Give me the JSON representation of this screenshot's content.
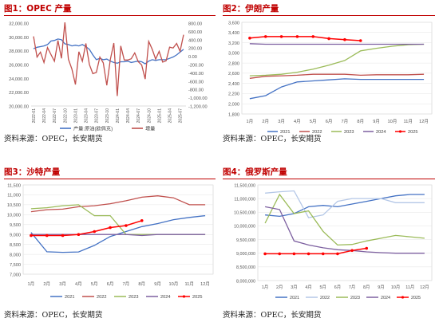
{
  "source_text": "资料来源：OPEC，长安期货",
  "chart_data": [
    {
      "id": "fig1",
      "type": "line",
      "title": "图1：OPEC 产量",
      "x": [
        "2022-01",
        "2022-02",
        "2022-03",
        "2022-04",
        "2022-05",
        "2022-06",
        "2022-07",
        "2022-08",
        "2022-09",
        "2022-10",
        "2022-11",
        "2022-12",
        "2023-01",
        "2023-02",
        "2023-03",
        "2023-04",
        "2023-05",
        "2023-06",
        "2023-07",
        "2023-08",
        "2023-09",
        "2023-10",
        "2023-11",
        "2023-12",
        "2024-01",
        "2024-02",
        "2024-03",
        "2024-04",
        "2024-05",
        "2024-06",
        "2024-07",
        "2024-08",
        "2024-09",
        "2024-10",
        "2024-11",
        "2024-12",
        "2025-01",
        "2025-02",
        "2025-03",
        "2025-04",
        "2025-05",
        "2025-06",
        "2025-07",
        "2025-08"
      ],
      "x_tick_labels": [
        "2022-01",
        "2022-04",
        "2022-07",
        "2022-10",
        "2023-01",
        "2023-04",
        "2023-07",
        "2023-10",
        "2024-01",
        "2024-04",
        "2024-07",
        "2024-10",
        "2025-01",
        "2025-04",
        "2025-07"
      ],
      "left_ticks": [
        "32,000.00",
        "30,000.00",
        "28,000.00",
        "26,000.00",
        "24,000.00",
        "22,000.00",
        "20,000.00"
      ],
      "right_ticks": [
        "800.00",
        "600.00",
        "400.00",
        "200.00",
        "0.00",
        "-200.00",
        "-400.00",
        "-600.00",
        "-800.00",
        "-1,000.00",
        "-1,200.00"
      ],
      "ylim_left": [
        20000,
        32000
      ],
      "ylim_right": [
        -1200,
        800
      ],
      "series": [
        {
          "name": "产量:原油(欧佩克)",
          "axis": "left",
          "color": "#4472c4",
          "values": [
            28300,
            28500,
            28600,
            28700,
            28900,
            29400,
            29500,
            29700,
            29600,
            29000,
            28900,
            28700,
            28800,
            28700,
            28900,
            28600,
            28200,
            27400,
            26700,
            26900,
            26700,
            26800,
            26500,
            26300,
            26200,
            26400,
            26400,
            26500,
            26300,
            26400,
            26500,
            26400,
            26100,
            26500,
            26700,
            26600,
            26700,
            26700,
            26700,
            26900,
            27100,
            27400,
            27800,
            28200
          ]
        },
        {
          "name": "增量",
          "axis": "right",
          "color": "#c0504d",
          "values": [
            480,
            -20,
            100,
            -150,
            210,
            40,
            -120,
            380,
            -50,
            820,
            -70,
            -310,
            -680,
            110,
            -120,
            310,
            -200,
            -420,
            -390,
            -20,
            -160,
            -700,
            -80,
            320,
            -960,
            250,
            -90,
            -90,
            -60,
            80,
            -130,
            -210,
            -550,
            360,
            170,
            -70,
            120,
            -140,
            -110,
            220,
            200,
            310,
            120,
            520
          ]
        }
      ]
    },
    {
      "id": "fig2",
      "type": "line",
      "title": "图2：伊朗产量",
      "categories": [
        "1月",
        "2月",
        "3月",
        "4月",
        "5月",
        "6月",
        "7月",
        "8月",
        "9月",
        "10月",
        "11月",
        "12月"
      ],
      "y_ticks": [
        "3,600",
        "3,400",
        "3,200",
        "3,000",
        "2,800",
        "2,600",
        "2,400",
        "2,200",
        "2,000",
        "1,800"
      ],
      "ylim": [
        1800,
        3600
      ],
      "series": [
        {
          "name": "2021",
          "color": "#4472c4",
          "values": [
            2100,
            2160,
            2330,
            2430,
            2450,
            2470,
            2490,
            2480,
            2480,
            2480,
            2480,
            2480
          ]
        },
        {
          "name": "2022",
          "color": "#c0504d",
          "values": [
            2500,
            2540,
            2550,
            2560,
            2580,
            2580,
            2580,
            2560,
            2570,
            2570,
            2570,
            2580
          ]
        },
        {
          "name": "2023",
          "color": "#9bbb59",
          "values": [
            2550,
            2560,
            2580,
            2620,
            2680,
            2760,
            2850,
            3040,
            3090,
            3130,
            3160,
            3170
          ]
        },
        {
          "name": "2024",
          "color": "#7d60a0",
          "values": [
            3180,
            3170,
            3170,
            3170,
            3170,
            3170,
            3170,
            3170,
            3170,
            3170,
            3170,
            3170
          ]
        },
        {
          "name": "2025",
          "color": "#ff0000",
          "values": [
            3290,
            3320,
            3320,
            3320,
            3320,
            3280,
            3260,
            3240,
            null,
            null,
            null,
            null
          ]
        }
      ]
    },
    {
      "id": "fig3",
      "type": "line",
      "title": "图3：沙特产量",
      "categories": [
        "1月",
        "2月",
        "3月",
        "4月",
        "5月",
        "6月",
        "7月",
        "8月",
        "9月",
        "10月",
        "11月",
        "12月"
      ],
      "y_ticks": [
        "11,500",
        "11,000",
        "10,500",
        "10,000",
        "9,500",
        "9,000",
        "8,500",
        "8,000",
        "7,500",
        "7,000"
      ],
      "ylim": [
        7000,
        11500
      ],
      "series": [
        {
          "name": "2021",
          "color": "#4472c4",
          "values": [
            9100,
            8130,
            8100,
            8120,
            8450,
            8900,
            9150,
            9400,
            9550,
            9750,
            9860,
            9950
          ]
        },
        {
          "name": "2022",
          "color": "#c0504d",
          "values": [
            10150,
            10250,
            10280,
            10400,
            10450,
            10550,
            10700,
            10880,
            10950,
            10850,
            10500,
            10500
          ]
        },
        {
          "name": "2023",
          "color": "#9bbb59",
          "values": [
            10300,
            10350,
            10450,
            10500,
            9950,
            9950,
            9000,
            9000,
            9000,
            9000,
            9000,
            9000
          ]
        },
        {
          "name": "2024",
          "color": "#7d60a0",
          "values": [
            9000,
            9000,
            9000,
            9000,
            9000,
            9000,
            9000,
            8950,
            9000,
            9000,
            9000,
            9000
          ]
        },
        {
          "name": "2025",
          "color": "#ff0000",
          "values": [
            8950,
            8950,
            8950,
            9000,
            9150,
            9350,
            9450,
            9700,
            null,
            null,
            null,
            null
          ]
        }
      ]
    },
    {
      "id": "fig4",
      "type": "line",
      "title": "图4：俄罗斯产量",
      "categories": [
        "1月",
        "2月",
        "3月",
        "4月",
        "5月",
        "6月",
        "7月",
        "8月",
        "9月",
        "10月",
        "11月",
        "12月"
      ],
      "y_ticks": [
        "11,500,000",
        "11,000,000",
        "10,500,000",
        "10,000,000",
        "9,500,000",
        "9,000,000",
        "8,500,000",
        "8,000,000"
      ],
      "ylim": [
        8000000,
        11500000
      ],
      "series": [
        {
          "name": "2021",
          "color": "#4472c4",
          "values": [
            10400000,
            10350000,
            10450000,
            10700000,
            10750000,
            10700000,
            10800000,
            10900000,
            11000000,
            11100000,
            11150000,
            11150000
          ]
        },
        {
          "name": "2022",
          "color": "#b4c7e7",
          "values": [
            11200000,
            11250000,
            11280000,
            10300000,
            10400000,
            10900000,
            11000000,
            11000000,
            11000000,
            10850000,
            10850000,
            10850000
          ]
        },
        {
          "name": "2023",
          "color": "#9bbb59",
          "values": [
            10100000,
            11150000,
            10450000,
            10550000,
            9800000,
            9300000,
            9320000,
            9450000,
            9550000,
            9650000,
            9600000,
            9550000
          ]
        },
        {
          "name": "2024",
          "color": "#7d60a0",
          "values": [
            10700000,
            10600000,
            9450000,
            9300000,
            9200000,
            9130000,
            9100000,
            9050000,
            9020000,
            9000000,
            9000000,
            9000000
          ]
        },
        {
          "name": "2025",
          "color": "#ff0000",
          "values": [
            8980000,
            8980000,
            8980000,
            8980000,
            8980000,
            8980000,
            9100000,
            9180000,
            null,
            null,
            null,
            null
          ]
        }
      ]
    }
  ]
}
